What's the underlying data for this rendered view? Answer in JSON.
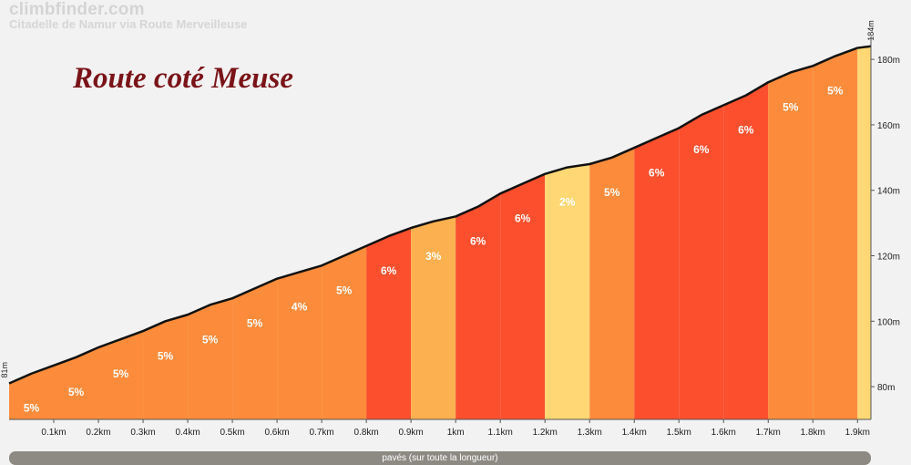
{
  "header": {
    "brand": "climbfinder.com",
    "subtitle": "Citadelle de Namur via Route Merveilleuse",
    "overlay_title": "Route coté Meuse"
  },
  "footer": {
    "surface_label": "pavés (sur toute la longueur)"
  },
  "colors": {
    "background": "#f2f2f2",
    "line": "#111111",
    "grade_2": "#ffd875",
    "grade_3": "#fdb04f",
    "grade_4": "#fc8c3b",
    "grade_5": "#fc8c3b",
    "grade_6": "#fb4f2d"
  },
  "chart_data": {
    "type": "area",
    "x_unit": "km",
    "y_unit": "m",
    "xlim": [
      0,
      1.93
    ],
    "ylim": [
      70,
      187
    ],
    "start_label": "81m",
    "end_label": "184m",
    "x_ticks": [
      "0.1km",
      "0.2km",
      "0.3km",
      "0.4km",
      "0.5km",
      "0.6km",
      "0.7km",
      "0.8km",
      "0.9km",
      "1km",
      "1.1km",
      "1.2km",
      "1.3km",
      "1.4km",
      "1.5km",
      "1.6km",
      "1.7km",
      "1.8km",
      "1.9km"
    ],
    "y_ticks": [
      "80m",
      "100m",
      "120m",
      "140m",
      "160m",
      "180m"
    ],
    "segments": [
      {
        "from": 0.0,
        "to": 0.1,
        "grade": "5%"
      },
      {
        "from": 0.1,
        "to": 0.2,
        "grade": "5%"
      },
      {
        "from": 0.2,
        "to": 0.3,
        "grade": "5%"
      },
      {
        "from": 0.3,
        "to": 0.4,
        "grade": "5%"
      },
      {
        "from": 0.4,
        "to": 0.5,
        "grade": "5%"
      },
      {
        "from": 0.5,
        "to": 0.6,
        "grade": "5%"
      },
      {
        "from": 0.6,
        "to": 0.7,
        "grade": "4%"
      },
      {
        "from": 0.7,
        "to": 0.8,
        "grade": "5%"
      },
      {
        "from": 0.8,
        "to": 0.9,
        "grade": "6%"
      },
      {
        "from": 0.9,
        "to": 1.0,
        "grade": "3%"
      },
      {
        "from": 1.0,
        "to": 1.1,
        "grade": "6%"
      },
      {
        "from": 1.1,
        "to": 1.2,
        "grade": "6%"
      },
      {
        "from": 1.2,
        "to": 1.3,
        "grade": "2%"
      },
      {
        "from": 1.3,
        "to": 1.4,
        "grade": "5%"
      },
      {
        "from": 1.4,
        "to": 1.5,
        "grade": "6%"
      },
      {
        "from": 1.5,
        "to": 1.6,
        "grade": "6%"
      },
      {
        "from": 1.6,
        "to": 1.7,
        "grade": "6%"
      },
      {
        "from": 1.7,
        "to": 1.8,
        "grade": "5%"
      },
      {
        "from": 1.8,
        "to": 1.9,
        "grade": "5%"
      },
      {
        "from": 1.9,
        "to": 1.93,
        "grade": ""
      }
    ],
    "profile": [
      [
        0.0,
        81
      ],
      [
        0.05,
        84
      ],
      [
        0.1,
        86.5
      ],
      [
        0.15,
        89
      ],
      [
        0.2,
        92
      ],
      [
        0.25,
        94.5
      ],
      [
        0.3,
        97
      ],
      [
        0.35,
        100
      ],
      [
        0.4,
        102
      ],
      [
        0.45,
        105
      ],
      [
        0.5,
        107
      ],
      [
        0.55,
        110
      ],
      [
        0.6,
        113
      ],
      [
        0.65,
        115
      ],
      [
        0.7,
        117
      ],
      [
        0.75,
        120
      ],
      [
        0.8,
        123
      ],
      [
        0.85,
        126
      ],
      [
        0.9,
        128.5
      ],
      [
        0.95,
        130.5
      ],
      [
        1.0,
        132
      ],
      [
        1.05,
        135
      ],
      [
        1.1,
        139
      ],
      [
        1.15,
        142
      ],
      [
        1.2,
        145
      ],
      [
        1.25,
        147
      ],
      [
        1.3,
        148
      ],
      [
        1.35,
        150
      ],
      [
        1.4,
        153
      ],
      [
        1.45,
        156
      ],
      [
        1.5,
        159
      ],
      [
        1.55,
        163
      ],
      [
        1.6,
        166
      ],
      [
        1.65,
        169
      ],
      [
        1.7,
        173
      ],
      [
        1.75,
        176
      ],
      [
        1.8,
        178
      ],
      [
        1.85,
        181
      ],
      [
        1.9,
        183.5
      ],
      [
        1.93,
        184
      ]
    ]
  }
}
